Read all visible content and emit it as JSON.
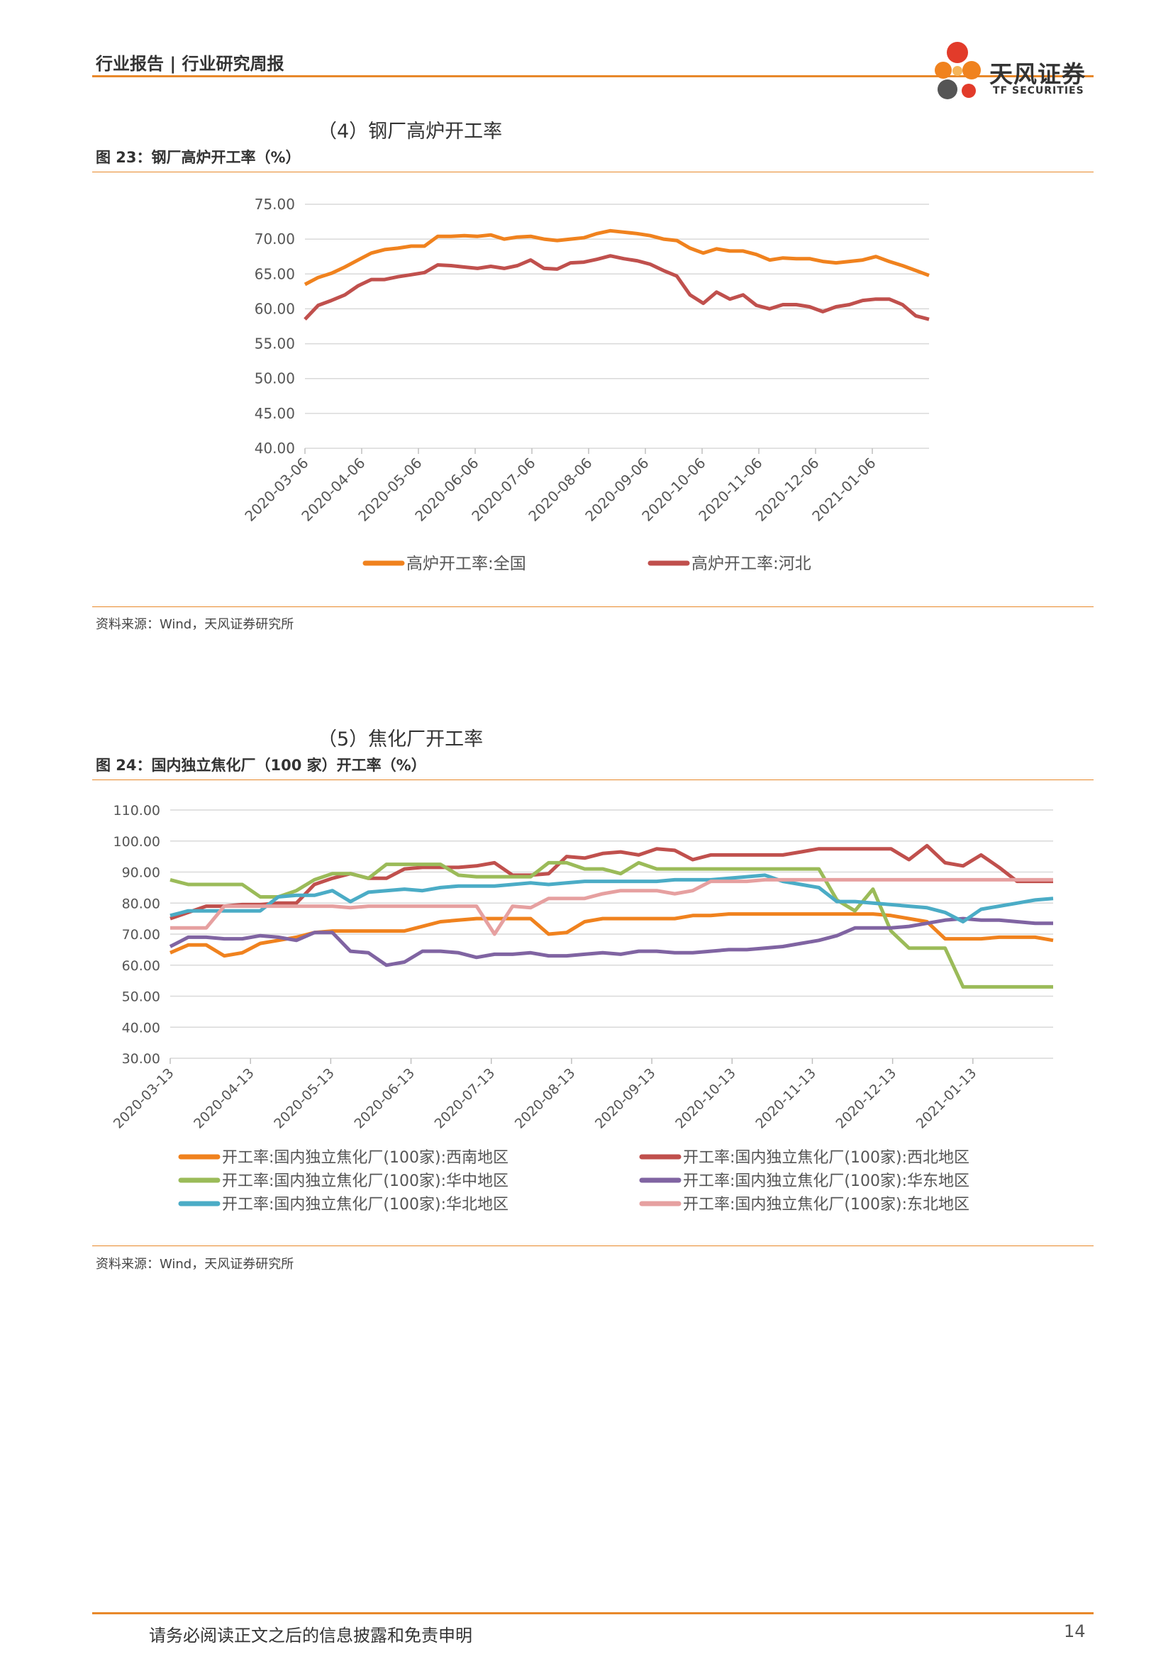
{
  "header": {
    "title": "行业报告 | 行业研究周报"
  },
  "logo": {
    "name": "天风证券",
    "sub": "TF SECURITIES"
  },
  "colors": {
    "accent": "#e8882a",
    "orange": "#f0821e",
    "red": "#c0504d",
    "green": "#9bbb59",
    "purple": "#8064a2",
    "blue": "#4bacc6",
    "pink": "#e6a0a0"
  },
  "section4": {
    "title": "（4）钢厂高炉开工率"
  },
  "figure23": {
    "title": "图 23：钢厂高炉开工率（%）",
    "source": "资料来源：Wind，天风证券研究所"
  },
  "section5": {
    "title": "（5）焦化厂开工率"
  },
  "figure24": {
    "title": "图 24：国内独立焦化厂（100 家）开工率（%）",
    "source": "资料来源：Wind，天风证券研究所"
  },
  "footer": {
    "disclaimer": "请务必阅读正文之后的信息披露和免责申明",
    "page": "14"
  },
  "chart_data": [
    {
      "type": "line",
      "ylim": [
        40,
        75
      ],
      "yticks": [
        "75.00",
        "70.00",
        "65.00",
        "60.00",
        "55.00",
        "50.00",
        "45.00",
        "40.00"
      ],
      "xticks": [
        "2020-03-06",
        "2020-04-06",
        "2020-05-06",
        "2020-06-06",
        "2020-07-06",
        "2020-08-06",
        "2020-09-06",
        "2020-10-06",
        "2020-11-06",
        "2020-12-06",
        "2021-01-06"
      ],
      "legend_position": "bottom",
      "series": [
        {
          "name": "高炉开工率:全国",
          "color": "#f0821e",
          "values": [
            63.5,
            64.5,
            65.1,
            66.0,
            67.0,
            68.0,
            68.5,
            68.7,
            69.0,
            69.0,
            70.4,
            70.4,
            70.5,
            70.4,
            70.6,
            70.0,
            70.3,
            70.4,
            70.0,
            69.8,
            70.0,
            70.2,
            70.8,
            71.2,
            71.0,
            70.8,
            70.5,
            70.0,
            69.8,
            68.7,
            68.0,
            68.6,
            68.3,
            68.3,
            67.8,
            67.0,
            67.3,
            67.2,
            67.2,
            66.8,
            66.6,
            66.8,
            67.0,
            67.5,
            66.8,
            66.2,
            65.5,
            64.8
          ]
        },
        {
          "name": "高炉开工率:河北",
          "color": "#c0504d",
          "values": [
            58.5,
            60.5,
            61.2,
            62.0,
            63.3,
            64.2,
            64.2,
            64.6,
            64.9,
            65.2,
            66.3,
            66.2,
            66.0,
            65.8,
            66.1,
            65.8,
            66.2,
            67.0,
            65.8,
            65.7,
            66.6,
            66.7,
            67.1,
            67.6,
            67.2,
            66.9,
            66.4,
            65.5,
            64.7,
            62.0,
            60.8,
            62.4,
            61.4,
            62.0,
            60.5,
            60.0,
            60.6,
            60.6,
            60.3,
            59.6,
            60.3,
            60.6,
            61.2,
            61.4,
            61.4,
            60.6,
            59.0,
            58.5
          ]
        }
      ]
    },
    {
      "type": "line",
      "ylim": [
        30,
        110
      ],
      "yticks": [
        "110.00",
        "100.00",
        "90.00",
        "80.00",
        "70.00",
        "60.00",
        "50.00",
        "40.00",
        "30.00"
      ],
      "xticks": [
        "2020-03-13",
        "2020-04-13",
        "2020-05-13",
        "2020-06-13",
        "2020-07-13",
        "2020-08-13",
        "2020-09-13",
        "2020-10-13",
        "2020-11-13",
        "2020-12-13",
        "2021-01-13"
      ],
      "legend_position": "bottom",
      "series": [
        {
          "name": "开工率:国内独立焦化厂(100家):西南地区",
          "color": "#f0821e",
          "values": [
            64.0,
            66.5,
            66.5,
            63.0,
            64.0,
            67.0,
            68.0,
            69.0,
            70.5,
            71.0,
            71.0,
            71.0,
            71.0,
            71.0,
            72.5,
            74.0,
            74.5,
            75.0,
            75.0,
            75.0,
            75.0,
            70.0,
            70.5,
            74.0,
            75.0,
            75.0,
            75.0,
            75.0,
            75.0,
            76.0,
            76.0,
            76.5,
            76.5,
            76.5,
            76.5,
            76.5,
            76.5,
            76.5,
            76.5,
            76.5,
            76.0,
            75.0,
            74.0,
            68.5,
            68.5,
            68.5,
            69.0,
            69.0,
            69.0,
            68.0
          ]
        },
        {
          "name": "开工率:国内独立焦化厂(100家):西北地区",
          "color": "#c0504d",
          "values": [
            75.0,
            77.0,
            79.0,
            79.0,
            79.5,
            79.5,
            80.0,
            80.0,
            86.0,
            88.0,
            89.5,
            88.0,
            88.0,
            91.0,
            91.5,
            91.5,
            91.5,
            92.0,
            93.0,
            89.0,
            89.0,
            89.5,
            95.0,
            94.5,
            96.0,
            96.5,
            95.5,
            97.5,
            97.0,
            94.0,
            95.5,
            95.5,
            95.5,
            95.5,
            95.5,
            96.5,
            97.5,
            97.5,
            97.5,
            97.5,
            97.5,
            94.0,
            98.5,
            93.0,
            92.0,
            95.5,
            91.5,
            87.0,
            87.0,
            87.0
          ]
        },
        {
          "name": "开工率:国内独立焦化厂(100家):华中地区",
          "color": "#9bbb59",
          "values": [
            87.5,
            86.0,
            86.0,
            86.0,
            86.0,
            82.0,
            82.0,
            84.0,
            87.5,
            89.5,
            89.5,
            88.0,
            92.5,
            92.5,
            92.5,
            92.5,
            89.0,
            88.5,
            88.5,
            88.5,
            88.5,
            93.0,
            93.0,
            91.0,
            91.0,
            89.5,
            93.0,
            91.0,
            91.0,
            91.0,
            91.0,
            91.0,
            91.0,
            91.0,
            91.0,
            91.0,
            91.0,
            81.0,
            77.5,
            84.5,
            71.0,
            65.5,
            65.5,
            65.5,
            53.0,
            53.0,
            53.0,
            53.0,
            53.0,
            53.0
          ]
        },
        {
          "name": "开工率:国内独立焦化厂(100家):华东地区",
          "color": "#8064a2",
          "values": [
            66.0,
            69.0,
            69.0,
            68.5,
            68.5,
            69.5,
            69.0,
            68.0,
            70.5,
            70.5,
            64.5,
            64.0,
            60.0,
            61.0,
            64.5,
            64.5,
            64.0,
            62.5,
            63.5,
            63.5,
            64.0,
            63.0,
            63.0,
            63.5,
            64.0,
            63.5,
            64.5,
            64.5,
            64.0,
            64.0,
            64.5,
            65.0,
            65.0,
            65.5,
            66.0,
            67.0,
            68.0,
            69.5,
            72.0,
            72.0,
            72.0,
            72.5,
            73.5,
            74.5,
            75.0,
            74.5,
            74.5,
            74.0,
            73.5,
            73.5
          ]
        },
        {
          "name": "开工率:国内独立焦化厂(100家):华北地区",
          "color": "#4bacc6",
          "values": [
            76.0,
            77.5,
            77.5,
            77.5,
            77.5,
            77.5,
            82.0,
            82.5,
            82.5,
            84.0,
            80.5,
            83.5,
            84.0,
            84.5,
            84.0,
            85.0,
            85.5,
            85.5,
            85.5,
            86.0,
            86.5,
            86.0,
            86.5,
            87.0,
            87.0,
            87.0,
            87.0,
            87.0,
            87.5,
            87.5,
            87.5,
            88.0,
            88.5,
            89.0,
            87.0,
            86.0,
            85.0,
            80.5,
            80.5,
            80.0,
            79.5,
            79.0,
            78.5,
            77.0,
            74.0,
            78.0,
            79.0,
            80.0,
            81.0,
            81.5
          ]
        },
        {
          "name": "开工率:国内独立焦化厂(100家):东北地区",
          "color": "#e6a0a0",
          "values": [
            72.0,
            72.0,
            72.0,
            79.0,
            79.0,
            79.0,
            79.0,
            79.0,
            79.0,
            79.0,
            78.5,
            79.0,
            79.0,
            79.0,
            79.0,
            79.0,
            79.0,
            79.0,
            70.0,
            79.0,
            78.5,
            81.5,
            81.5,
            81.5,
            83.0,
            84.0,
            84.0,
            84.0,
            83.0,
            84.0,
            87.0,
            87.0,
            87.0,
            87.5,
            87.5,
            87.5,
            87.5,
            87.5,
            87.5,
            87.5,
            87.5,
            87.5,
            87.5,
            87.5,
            87.5,
            87.5,
            87.5,
            87.5,
            87.5,
            87.5
          ]
        }
      ]
    }
  ]
}
